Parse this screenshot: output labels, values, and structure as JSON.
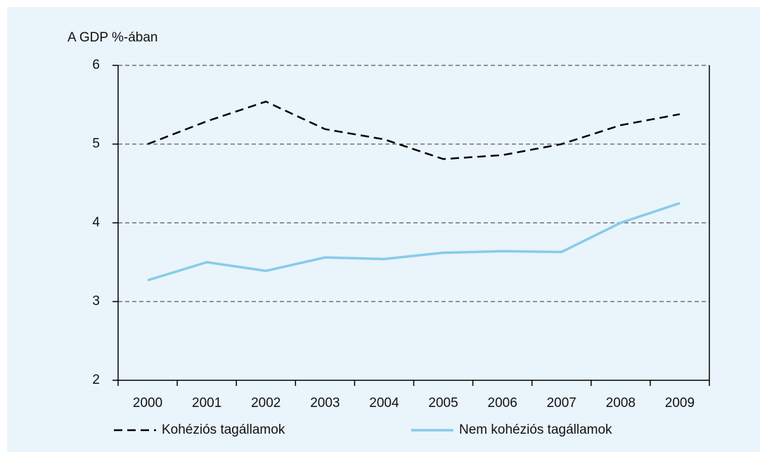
{
  "chart_data": {
    "type": "line",
    "y_label": "A GDP %-ában",
    "categories": [
      "2000",
      "2001",
      "2002",
      "2003",
      "2004",
      "2005",
      "2006",
      "2007",
      "2008",
      "2009"
    ],
    "series": [
      {
        "name": "Kohéziós tagállamok",
        "color": "#000000",
        "style": "dashed",
        "values": [
          5.0,
          5.29,
          5.54,
          5.19,
          5.06,
          4.81,
          4.86,
          5.0,
          5.24,
          5.38
        ]
      },
      {
        "name": "Nem kohéziós tagállamok",
        "color": "#87cce8",
        "style": "solid",
        "values": [
          3.27,
          3.5,
          3.39,
          3.56,
          3.54,
          3.62,
          3.64,
          3.63,
          4.0,
          4.25
        ]
      }
    ],
    "ylim": [
      2,
      6
    ],
    "yticks": [
      2,
      3,
      4,
      5,
      6
    ],
    "grid": true
  }
}
